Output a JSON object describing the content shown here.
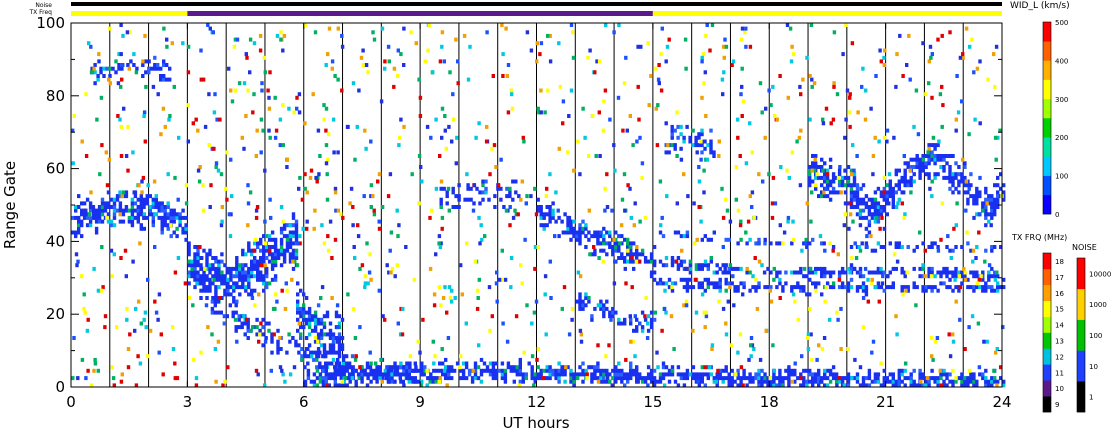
{
  "header": {
    "noise_label": "Noise",
    "txfreq_label": "TX Freq"
  },
  "chart_data": {
    "type": "heatmap",
    "xlabel": "UT hours",
    "ylabel": "Range Gate",
    "xlim": [
      0,
      24
    ],
    "ylim": [
      0,
      100
    ],
    "x_ticks": [
      "0",
      "3",
      "6",
      "9",
      "12",
      "15",
      "18",
      "21",
      "24"
    ],
    "y_ticks": [
      "0",
      "20",
      "40",
      "60",
      "80",
      "100"
    ],
    "grid": "vertical lines every hour",
    "tx_freq_bar": [
      {
        "from": 0,
        "to": 3,
        "color": "#ffff00"
      },
      {
        "from": 3,
        "to": 15,
        "color": "#5a1a8c"
      },
      {
        "from": 15,
        "to": 24,
        "color": "#ffff00"
      }
    ],
    "bands": [
      {
        "name": "ground-scatter-early",
        "points": [
          [
            0,
            46
          ],
          [
            1,
            48
          ],
          [
            2,
            48
          ],
          [
            3,
            44
          ]
        ],
        "width": 5,
        "density": 0.75
      },
      {
        "name": "ground-scatter-3-5",
        "points": [
          [
            3,
            33
          ],
          [
            4,
            28
          ],
          [
            5,
            34
          ],
          [
            5.8,
            40
          ]
        ],
        "width": 7,
        "density": 0.8
      },
      {
        "name": "descending-arc",
        "points": [
          [
            3.6,
            22
          ],
          [
            4.6,
            16
          ],
          [
            5.6,
            10
          ],
          [
            6.5,
            6
          ],
          [
            8,
            3
          ],
          [
            9.5,
            2
          ]
        ],
        "width": 3,
        "density": 0.55
      },
      {
        "name": "patch-6",
        "points": [
          [
            5.8,
            20
          ],
          [
            6.4,
            15
          ],
          [
            7,
            10
          ]
        ],
        "width": 8,
        "density": 0.7
      },
      {
        "name": "near-ground",
        "points": [
          [
            6,
            2
          ],
          [
            10,
            4
          ],
          [
            14,
            3
          ],
          [
            18,
            2
          ],
          [
            24,
            1
          ]
        ],
        "width": 2.5,
        "density": 0.8
      },
      {
        "name": "mid-band-9-12",
        "points": [
          [
            9.5,
            51
          ],
          [
            10.5,
            53
          ],
          [
            11.5,
            52
          ]
        ],
        "width": 3,
        "density": 0.4
      },
      {
        "name": "descending-12-15",
        "points": [
          [
            12,
            48
          ],
          [
            13,
            42
          ],
          [
            14,
            38
          ],
          [
            15,
            34
          ]
        ],
        "width": 3.5,
        "density": 0.65
      },
      {
        "name": "lower-12-15",
        "points": [
          [
            13,
            23
          ],
          [
            14,
            19
          ],
          [
            15,
            16
          ]
        ],
        "width": 3,
        "density": 0.5
      },
      {
        "name": "band-30",
        "points": [
          [
            15,
            34
          ],
          [
            18,
            31
          ],
          [
            21,
            31
          ],
          [
            24,
            30
          ]
        ],
        "width": 1.5,
        "density": 0.6
      },
      {
        "name": "band-28",
        "points": [
          [
            15,
            28
          ],
          [
            18,
            27
          ],
          [
            21,
            27
          ],
          [
            24,
            27
          ]
        ],
        "width": 1.5,
        "density": 0.6
      },
      {
        "name": "band-40",
        "points": [
          [
            15,
            42
          ],
          [
            18,
            39
          ],
          [
            21,
            38
          ],
          [
            24,
            38
          ]
        ],
        "width": 1.2,
        "density": 0.35
      },
      {
        "name": "echoes-19-24",
        "points": [
          [
            19,
            58
          ],
          [
            20,
            55
          ],
          [
            20.6,
            47
          ],
          [
            21.5,
            57
          ],
          [
            22.2,
            63
          ],
          [
            23,
            55
          ],
          [
            23.6,
            48
          ],
          [
            24,
            53
          ]
        ],
        "width": 5,
        "density": 0.75
      },
      {
        "name": "echoes-15-17",
        "points": [
          [
            15.3,
            68
          ],
          [
            16,
            68
          ],
          [
            16.6,
            65
          ]
        ],
        "width": 4,
        "density": 0.45
      },
      {
        "name": "high-early",
        "points": [
          [
            0.5,
            86
          ],
          [
            1.5,
            88
          ],
          [
            2.5,
            86
          ]
        ],
        "width": 3,
        "density": 0.35
      }
    ],
    "scatter_colors": [
      "#2030e0",
      "#1a50ff",
      "#00c8e0",
      "#00b060",
      "#e00000",
      "#f0a000",
      "#ffff00"
    ],
    "colorbars": [
      {
        "title": "WID_L (km/s)",
        "labels": [
          "0",
          "100",
          "200",
          "300",
          "400",
          "500"
        ],
        "colors": [
          "#0a00ff",
          "#0050ff",
          "#00c8ff",
          "#00e0a0",
          "#00d000",
          "#a0ff00",
          "#ffff00",
          "#ffb000",
          "#ff6000",
          "#ff0000"
        ]
      },
      {
        "title": "TX FRQ (MHz)",
        "labels": [
          "9",
          "10",
          "11",
          "12",
          "13",
          "14",
          "15",
          "16",
          "17",
          "18"
        ],
        "colors": [
          "#000000",
          "#5a1a8c",
          "#2040ff",
          "#00c0e0",
          "#00c800",
          "#a0ff00",
          "#ffff00",
          "#ffa000",
          "#ff6000",
          "#ff0000"
        ]
      },
      {
        "title": "NOISE",
        "labels": [
          "1",
          "10",
          "100",
          "1000",
          "10000"
        ],
        "colors": [
          "#000000",
          "#2040ff",
          "#00c000",
          "#ffd000",
          "#ff0000"
        ]
      }
    ]
  }
}
